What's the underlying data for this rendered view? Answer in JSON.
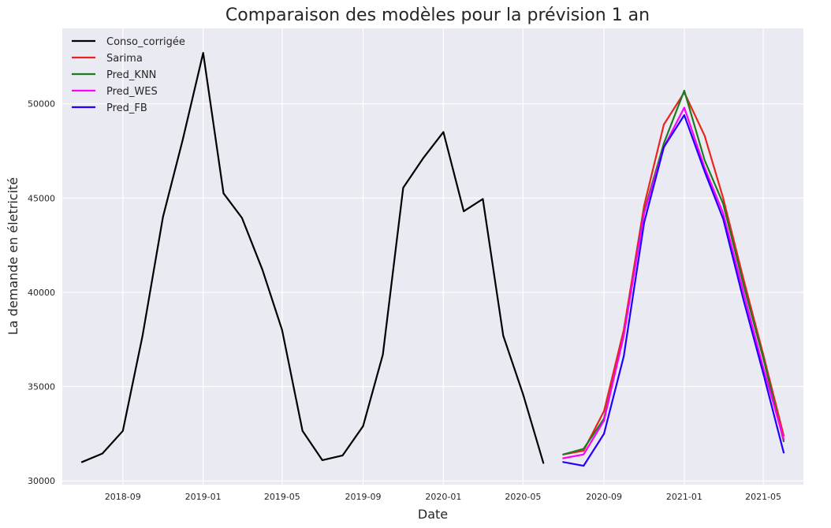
{
  "chart_data": {
    "type": "line",
    "title": "Comparaison des modèles pour la prévision 1 an",
    "xlabel": "Date",
    "ylabel": "La demande en életricité",
    "x_axis": {
      "type": "date",
      "range": [
        "2018-06-01",
        "2021-07-01"
      ],
      "ticks": [
        "2018-09",
        "2019-01",
        "2019-05",
        "2019-09",
        "2020-01",
        "2020-05",
        "2020-09",
        "2021-01",
        "2021-05"
      ]
    },
    "y_axis": {
      "range": [
        29800,
        54000
      ],
      "ticks": [
        30000,
        35000,
        40000,
        45000,
        50000
      ]
    },
    "grid": true,
    "legend_position": "top-left",
    "series": [
      {
        "name": "Conso_corrigée",
        "color": "#000000",
        "x": [
          "2018-07",
          "2018-08",
          "2018-09",
          "2018-10",
          "2018-11",
          "2018-12",
          "2019-01",
          "2019-02",
          "2019-03",
          "2019-04",
          "2019-05",
          "2019-06",
          "2019-07",
          "2019-08",
          "2019-09",
          "2019-10",
          "2019-11",
          "2019-12",
          "2020-01",
          "2020-02",
          "2020-03",
          "2020-04",
          "2020-05",
          "2020-06"
        ],
        "values": [
          31000,
          31450,
          32650,
          37700,
          44000,
          48100,
          52700,
          45250,
          43950,
          41200,
          38000,
          32650,
          31100,
          31350,
          32900,
          36700,
          45550,
          47100,
          48500,
          44300,
          44950,
          37700,
          34600,
          30950
        ]
      },
      {
        "name": "Sarima",
        "color": "#e8251f",
        "x": [
          "2020-07",
          "2020-08",
          "2020-09",
          "2020-10",
          "2020-11",
          "2020-12",
          "2021-01",
          "2021-02",
          "2021-03",
          "2021-04",
          "2021-05",
          "2021-06"
        ],
        "values": [
          31400,
          31600,
          33700,
          38000,
          44600,
          48900,
          50600,
          48300,
          45000,
          40700,
          36700,
          32400
        ]
      },
      {
        "name": "Pred_KNN",
        "color": "#1f7a1f",
        "x": [
          "2020-07",
          "2020-08",
          "2020-09",
          "2020-10",
          "2020-11",
          "2020-12",
          "2021-01",
          "2021-02",
          "2021-03",
          "2021-04",
          "2021-05",
          "2021-06"
        ],
        "values": [
          31400,
          31700,
          33300,
          37700,
          44300,
          47900,
          50700,
          47000,
          44700,
          40400,
          36500,
          32100
        ]
      },
      {
        "name": "Pred_WES",
        "color": "#ff00ff",
        "x": [
          "2020-07",
          "2020-08",
          "2020-09",
          "2020-10",
          "2020-11",
          "2020-12",
          "2021-01",
          "2021-02",
          "2021-03",
          "2021-04",
          "2021-05",
          "2021-06"
        ],
        "values": [
          31200,
          31400,
          33200,
          37700,
          44200,
          47700,
          49800,
          46600,
          44200,
          40000,
          36000,
          32200
        ]
      },
      {
        "name": "Pred_FB",
        "color": "#2200ff",
        "x": [
          "2020-07",
          "2020-08",
          "2020-09",
          "2020-10",
          "2020-11",
          "2020-12",
          "2021-01",
          "2021-02",
          "2021-03",
          "2021-04",
          "2021-05",
          "2021-06"
        ],
        "values": [
          31000,
          30800,
          32500,
          36600,
          43700,
          47700,
          49400,
          46400,
          43900,
          39600,
          35700,
          31500
        ]
      }
    ]
  }
}
